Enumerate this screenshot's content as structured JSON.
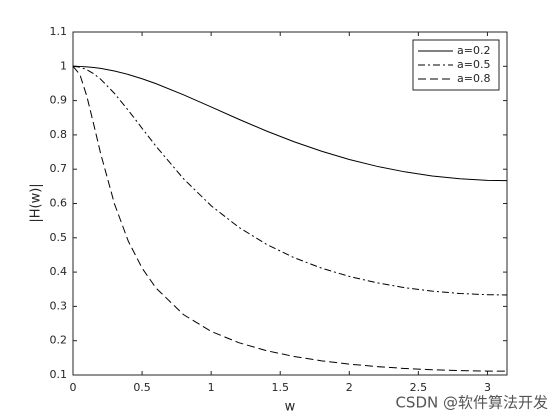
{
  "chart_data": {
    "type": "line",
    "xlabel": "w",
    "ylabel": "|H(w)|",
    "x": [
      0,
      0.05,
      0.1,
      0.15,
      0.2,
      0.3,
      0.4,
      0.5,
      0.6,
      0.8,
      1.0,
      1.2,
      1.4,
      1.6,
      1.8,
      2.0,
      2.2,
      2.4,
      2.6,
      2.8,
      3.0,
      3.1416
    ],
    "series": [
      {
        "name": "a=0.2",
        "color": "#000000",
        "style": "solid",
        "values": [
          1,
          0.9996,
          0.9984,
          0.9965,
          0.9938,
          0.9863,
          0.9762,
          0.9638,
          0.9495,
          0.9169,
          0.8814,
          0.8456,
          0.8114,
          0.7801,
          0.7523,
          0.7283,
          0.7084,
          0.6924,
          0.6803,
          0.6721,
          0.6676,
          0.6667
        ]
      },
      {
        "name": "a=0.5",
        "color": "#000000",
        "style": "dashdot",
        "values": [
          1,
          0.9975,
          0.9902,
          0.9783,
          0.9624,
          0.9211,
          0.8718,
          0.8193,
          0.7673,
          0.6722,
          0.5935,
          0.5307,
          0.4811,
          0.4421,
          0.4114,
          0.3874,
          0.3688,
          0.3547,
          0.3445,
          0.3377,
          0.3341,
          0.3333
        ]
      },
      {
        "name": "a=0.8",
        "color": "#000000",
        "style": "dashed",
        "values": [
          1,
          0.9759,
          0.9129,
          0.8307,
          0.7459,
          0.5991,
          0.4904,
          0.4118,
          0.3539,
          0.276,
          0.2271,
          0.1942,
          0.171,
          0.154,
          0.1413,
          0.1317,
          0.1245,
          0.1191,
          0.1153,
          0.1127,
          0.1114,
          0.1111
        ]
      }
    ],
    "xlim": [
      0,
      3.1416
    ],
    "xticks": [
      0,
      0.5,
      1,
      1.5,
      2,
      2.5,
      3
    ],
    "ylim": [
      0.1,
      1.1
    ],
    "yticks": [
      0.1,
      0.2,
      0.3,
      0.4,
      0.5,
      0.6,
      0.7,
      0.8,
      0.9,
      1,
      1.1
    ],
    "grid": false,
    "legend": "upper-right"
  },
  "watermark": "CSDN @软件算法开发"
}
